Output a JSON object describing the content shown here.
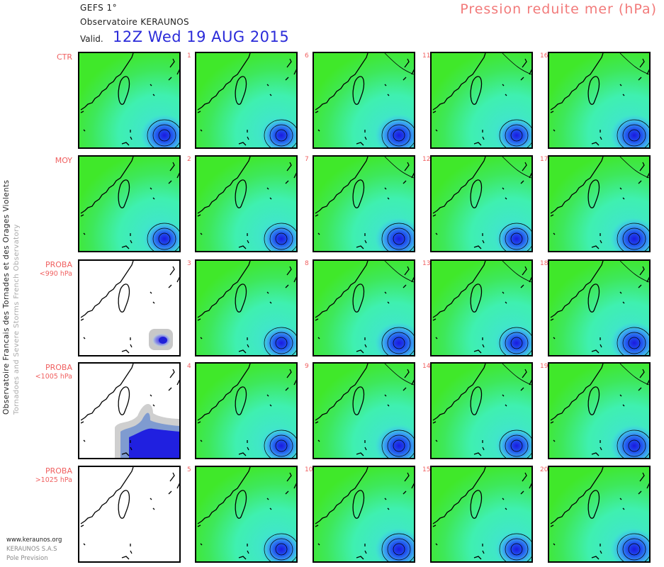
{
  "header": {
    "model": "GEFS 1°",
    "observatory": "Observatoire KERAUNOS",
    "valid_label": "Valid.",
    "valid_time": "12Z Wed 19 AUG 2015",
    "parameter": "Pression reduite mer (hPa)"
  },
  "rows": [
    {
      "label": "CTR",
      "sub": "",
      "members": [
        "1",
        "6",
        "11",
        "16"
      ]
    },
    {
      "label": "MOY",
      "sub": "",
      "members": [
        "2",
        "7",
        "12",
        "17"
      ]
    },
    {
      "label": "PROBA",
      "sub": "<990 hPa",
      "members": [
        "3",
        "8",
        "13",
        "18"
      ]
    },
    {
      "label": "PROBA",
      "sub": "<1005 hPa",
      "members": [
        "4",
        "9",
        "14",
        "19"
      ]
    },
    {
      "label": "PROBA",
      "sub": ">1025 hPa",
      "members": [
        "5",
        "10",
        "15",
        "20"
      ]
    }
  ],
  "sidebar": {
    "title": "Observatoire Francais des Tornades et des Orages Violents",
    "subtitle": "Tornadoes and Severe Storms French Observatory"
  },
  "footer": {
    "site": "www.keraunos.org",
    "company": "KERAUNOS S.A.S",
    "sub_company": "Pole Prevision"
  },
  "colors": {
    "title_red": "#f27a7a",
    "valid_blue": "#2b2bd9",
    "field_green": "#3fe82e",
    "field_cyan": "#3ee8c6",
    "low_blue": "#1a2be0"
  }
}
